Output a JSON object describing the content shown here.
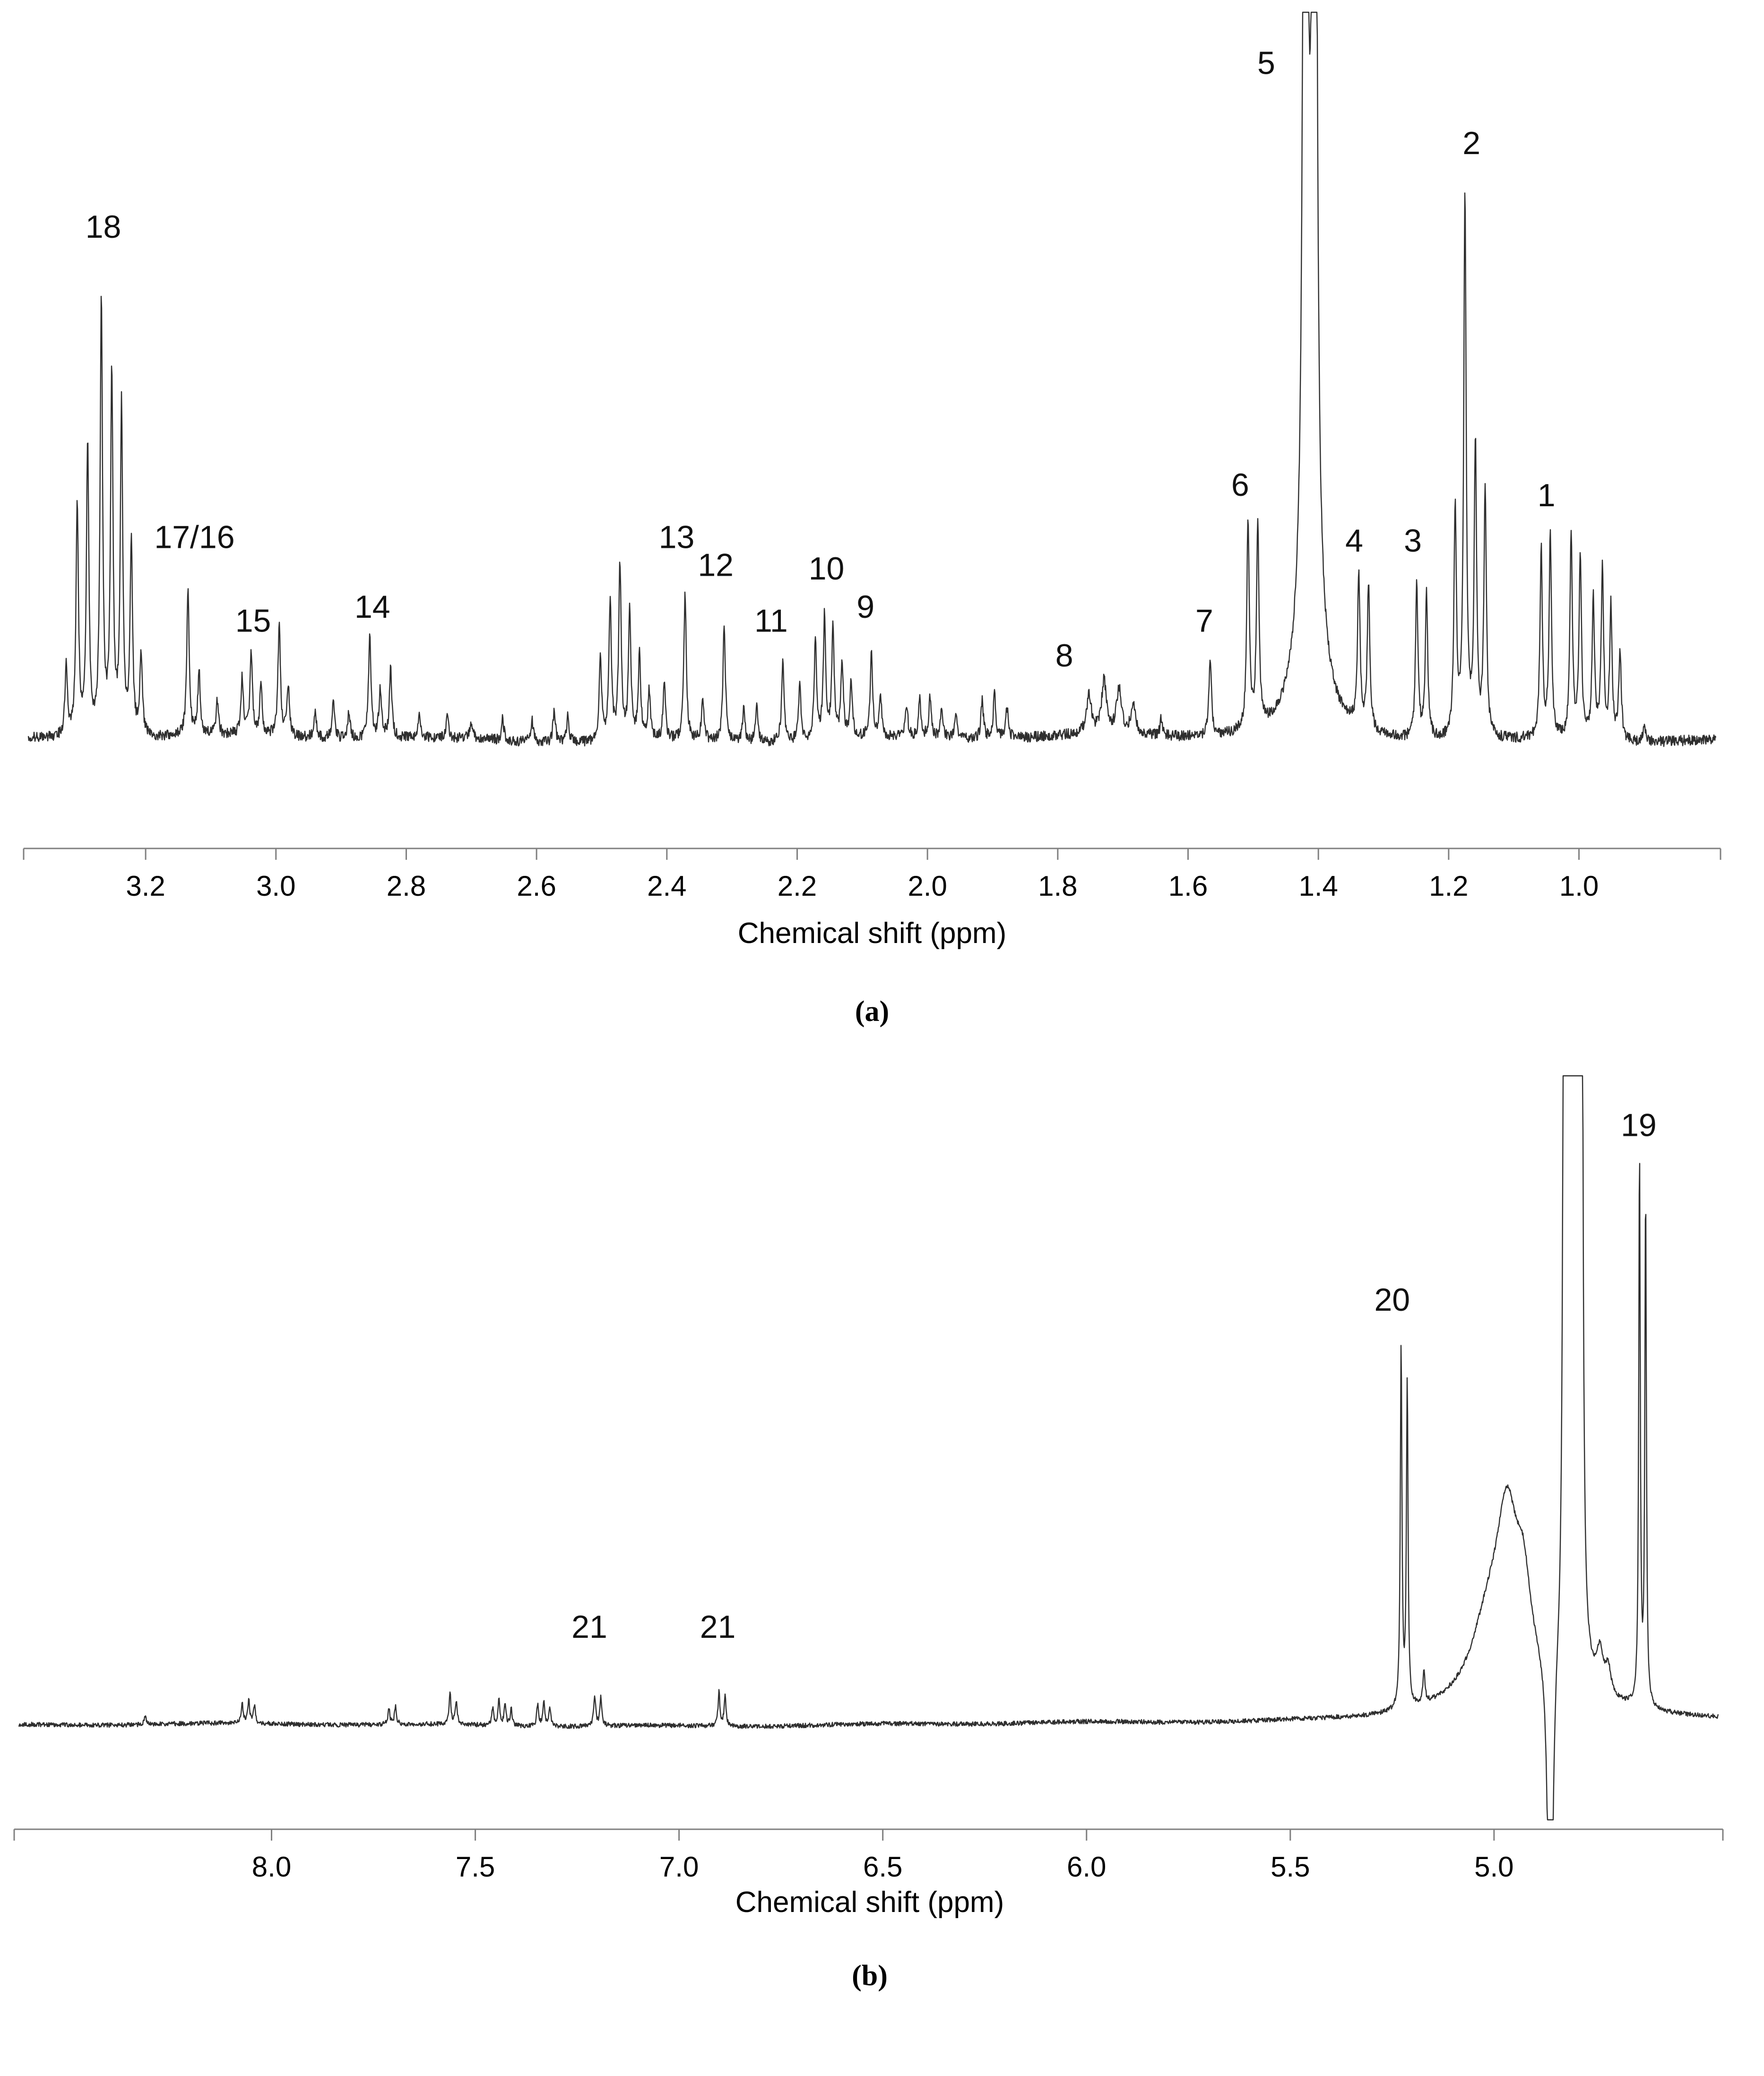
{
  "figure": {
    "background": "#ffffff",
    "trace_color": "#2e2e2e",
    "axis_color": "#808080",
    "text_color": "#000000"
  },
  "chart_data": [
    {
      "id": "a",
      "type": "line",
      "panel_label": "(a)",
      "xlabel": "Chemical shift (ppm)",
      "ylabel": "",
      "x_axis_reversed": true,
      "xlim": [
        3.38,
        0.79
      ],
      "xticks": [
        {
          "v": 3.2,
          "t": "3.2"
        },
        {
          "v": 3.0,
          "t": "3.0"
        },
        {
          "v": 2.8,
          "t": "2.8"
        },
        {
          "v": 2.6,
          "t": "2.6"
        },
        {
          "v": 2.4,
          "t": "2.4"
        },
        {
          "v": 2.2,
          "t": "2.2"
        },
        {
          "v": 2.0,
          "t": "2.0"
        },
        {
          "v": 1.8,
          "t": "1.8"
        },
        {
          "v": 1.6,
          "t": "1.6"
        },
        {
          "v": 1.4,
          "t": "1.4"
        },
        {
          "v": 1.2,
          "t": "1.2"
        },
        {
          "v": 1.0,
          "t": "1.0"
        }
      ],
      "noise": 0.0075,
      "wander": 0.004,
      "seed": 1234567,
      "default_width": 0.0045,
      "peaks_format": [
        "ppm",
        "height_fraction_of_plot",
        "fwhm_ppm_optional"
      ],
      "peaks": [
        [
          3.322,
          0.1
        ],
        [
          3.305,
          0.33
        ],
        [
          3.289,
          0.42
        ],
        [
          3.268,
          0.62
        ],
        [
          3.252,
          0.52
        ],
        [
          3.237,
          0.47
        ],
        [
          3.222,
          0.28
        ],
        [
          3.207,
          0.12
        ],
        [
          3.135,
          0.21
        ],
        [
          3.118,
          0.09
        ],
        [
          3.09,
          0.05
        ],
        [
          3.052,
          0.08
        ],
        [
          3.038,
          0.115
        ],
        [
          3.023,
          0.07
        ],
        [
          2.995,
          0.16
        ],
        [
          2.981,
          0.07
        ],
        [
          2.94,
          0.04
        ],
        [
          2.912,
          0.05
        ],
        [
          2.888,
          0.04
        ],
        [
          2.856,
          0.15
        ],
        [
          2.84,
          0.07
        ],
        [
          2.824,
          0.1
        ],
        [
          2.78,
          0.03
        ],
        [
          2.737,
          0.028
        ],
        [
          2.7,
          0.025
        ],
        [
          2.652,
          0.03
        ],
        [
          2.607,
          0.032
        ],
        [
          2.573,
          0.045
        ],
        [
          2.552,
          0.038
        ],
        [
          2.502,
          0.12
        ],
        [
          2.487,
          0.2
        ],
        [
          2.472,
          0.25
        ],
        [
          2.457,
          0.185
        ],
        [
          2.442,
          0.12
        ],
        [
          2.427,
          0.07
        ],
        [
          2.404,
          0.08
        ],
        [
          2.372,
          0.21
        ],
        [
          2.345,
          0.06
        ],
        [
          2.312,
          0.17
        ],
        [
          2.282,
          0.045
        ],
        [
          2.262,
          0.05
        ],
        [
          2.222,
          0.115
        ],
        [
          2.196,
          0.08
        ],
        [
          2.172,
          0.14
        ],
        [
          2.158,
          0.175
        ],
        [
          2.145,
          0.16
        ],
        [
          2.131,
          0.11
        ],
        [
          2.117,
          0.08
        ],
        [
          2.086,
          0.125
        ],
        [
          2.072,
          0.06
        ],
        [
          2.032,
          0.045
        ],
        [
          2.012,
          0.055
        ],
        [
          1.996,
          0.06
        ],
        [
          1.978,
          0.045
        ],
        [
          1.956,
          0.035
        ],
        [
          1.916,
          0.055
        ],
        [
          1.897,
          0.065
        ],
        [
          1.878,
          0.045
        ],
        [
          1.752,
          0.055,
          0.009
        ],
        [
          1.729,
          0.075,
          0.009
        ],
        [
          1.706,
          0.065,
          0.009
        ],
        [
          1.684,
          0.04,
          0.009
        ],
        [
          1.641,
          0.025
        ],
        [
          1.566,
          0.115
        ],
        [
          1.508,
          0.3
        ],
        [
          1.493,
          0.29
        ],
        [
          1.42,
          3.6,
          0.0045
        ],
        [
          1.406,
          3.6,
          0.0045
        ],
        [
          1.413,
          0.3,
          0.035
        ],
        [
          1.338,
          0.22
        ],
        [
          1.323,
          0.21
        ],
        [
          1.249,
          0.22
        ],
        [
          1.234,
          0.21
        ],
        [
          1.19,
          0.33
        ],
        [
          1.175,
          0.78
        ],
        [
          1.159,
          0.42
        ],
        [
          1.144,
          0.36
        ],
        [
          1.058,
          0.27
        ],
        [
          1.044,
          0.29
        ],
        [
          1.012,
          0.29
        ],
        [
          0.998,
          0.26
        ],
        [
          0.978,
          0.2
        ],
        [
          0.964,
          0.245
        ],
        [
          0.951,
          0.19
        ],
        [
          0.937,
          0.13
        ],
        [
          0.9,
          0.025
        ]
      ],
      "labels": [
        {
          "text": "18",
          "ppm": 3.265,
          "y": 0.72
        },
        {
          "text": "17/16",
          "ppm": 3.125,
          "y": 0.275
        },
        {
          "text": "15",
          "ppm": 3.035,
          "y": 0.155
        },
        {
          "text": "14",
          "ppm": 2.852,
          "y": 0.175
        },
        {
          "text": "13",
          "ppm": 2.385,
          "y": 0.275
        },
        {
          "text": "12",
          "ppm": 2.325,
          "y": 0.235
        },
        {
          "text": "11",
          "ppm": 2.24,
          "y": 0.155
        },
        {
          "text": "10",
          "ppm": 2.155,
          "y": 0.23
        },
        {
          "text": "9",
          "ppm": 2.095,
          "y": 0.175
        },
        {
          "text": "8",
          "ppm": 1.79,
          "y": 0.105
        },
        {
          "text": "7",
          "ppm": 1.575,
          "y": 0.155
        },
        {
          "text": "6",
          "ppm": 1.52,
          "y": 0.35
        },
        {
          "text": "5",
          "ppm": 1.48,
          "y": 0.955
        },
        {
          "text": "4",
          "ppm": 1.345,
          "y": 0.27
        },
        {
          "text": "3",
          "ppm": 1.255,
          "y": 0.27
        },
        {
          "text": "2",
          "ppm": 1.165,
          "y": 0.84
        },
        {
          "text": "1",
          "ppm": 1.05,
          "y": 0.335
        }
      ]
    },
    {
      "id": "b",
      "type": "line",
      "panel_label": "(b)",
      "xlabel": "Chemical shift (ppm)",
      "ylabel": "",
      "x_axis_reversed": true,
      "xlim": [
        8.62,
        4.45
      ],
      "xticks": [
        {
          "v": 8.0,
          "t": "8.0"
        },
        {
          "v": 7.5,
          "t": "7.5"
        },
        {
          "v": 7.0,
          "t": "7.0"
        },
        {
          "v": 6.5,
          "t": "6.5"
        },
        {
          "v": 6.0,
          "t": "6.0"
        },
        {
          "v": 5.5,
          "t": "5.5"
        },
        {
          "v": 5.0,
          "t": "5.0"
        }
      ],
      "noise": 0.0035,
      "wander": 0.002,
      "seed": 987654,
      "default_width": 0.0055,
      "peaks_format": [
        "ppm",
        "height_fraction_of_plot",
        "fwhm_ppm_optional"
      ],
      "peaks": [
        [
          8.31,
          0.012
        ],
        [
          8.072,
          0.03
        ],
        [
          8.056,
          0.036
        ],
        [
          8.042,
          0.028
        ],
        [
          7.712,
          0.024
        ],
        [
          7.696,
          0.028
        ],
        [
          7.562,
          0.048
        ],
        [
          7.547,
          0.036
        ],
        [
          7.457,
          0.028
        ],
        [
          7.442,
          0.04
        ],
        [
          7.427,
          0.034
        ],
        [
          7.412,
          0.026
        ],
        [
          7.347,
          0.034
        ],
        [
          7.332,
          0.04
        ],
        [
          7.317,
          0.028
        ],
        [
          7.207,
          0.048
        ],
        [
          7.192,
          0.044
        ],
        [
          6.902,
          0.052
        ],
        [
          6.887,
          0.048
        ],
        [
          5.228,
          0.56,
          0.0048
        ],
        [
          5.213,
          0.5,
          0.0048
        ],
        [
          5.172,
          0.05,
          0.006
        ],
        [
          5.015,
          0.1,
          0.1
        ],
        [
          4.968,
          0.24,
          0.065
        ],
        [
          4.928,
          0.12,
          0.045
        ],
        [
          4.9,
          0.05,
          0.45
        ],
        [
          4.862,
          -0.7,
          0.012
        ],
        [
          4.826,
          6,
          0.004
        ],
        [
          4.813,
          6,
          0.004
        ],
        [
          4.8,
          6,
          0.004
        ],
        [
          4.787,
          6,
          0.004
        ],
        [
          4.74,
          0.06,
          0.02
        ],
        [
          4.72,
          0.04,
          0.015
        ],
        [
          4.643,
          0.85,
          0.0045
        ],
        [
          4.628,
          0.79,
          0.0045
        ]
      ],
      "labels": [
        {
          "text": "19",
          "ppm": 4.645,
          "y": 0.91
        },
        {
          "text": "20",
          "ppm": 5.25,
          "y": 0.64
        },
        {
          "text": "21",
          "ppm": 7.22,
          "y": 0.135
        },
        {
          "text": "21",
          "ppm": 6.905,
          "y": 0.135
        }
      ]
    }
  ]
}
